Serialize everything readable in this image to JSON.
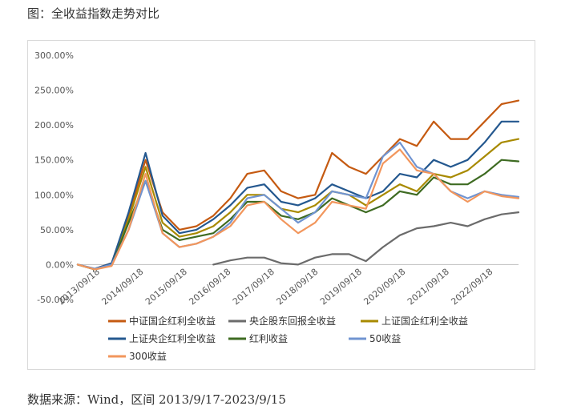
{
  "figure": {
    "title": "图：全收益指数走势对比",
    "source": "数据来源：Wind，区间 2013/9/17-2023/9/15"
  },
  "colors": {
    "中证国企红利全收益": "#c55a11",
    "央企股东回报全收益": "#6b6b6b",
    "上证国企红利全收益": "#a88a00",
    "上证央企红利全收益": "#24588f",
    "红利收益": "#3e6b22",
    "50收益": "#7094d1",
    "300收益": "#f2965c"
  },
  "chart_data": {
    "type": "line",
    "title": "",
    "xlabel": "",
    "ylabel": "",
    "ylim": [
      -0.5,
      3.0
    ],
    "y_ticks": [
      -0.5,
      0.0,
      0.5,
      1.0,
      1.5,
      2.0,
      2.5,
      3.0
    ],
    "y_tick_labels": [
      "-50.00%",
      "0.00%",
      "50.00%",
      "100.00%",
      "150.00%",
      "200.00%",
      "250.00%",
      "300.00%"
    ],
    "x_tick_labels": [
      "2013/09/18",
      "2014/09/18",
      "2015/09/18",
      "2016/09/18",
      "2017/09/18",
      "2018/09/18",
      "2019/09/18",
      "2020/09/18",
      "2021/09/18",
      "2022/09/18"
    ],
    "x": [
      "2013/09",
      "2014/03",
      "2014/09",
      "2015/03",
      "2015/06",
      "2015/09",
      "2016/01",
      "2016/03",
      "2016/09",
      "2017/03",
      "2017/09",
      "2018/01",
      "2018/06",
      "2018/10",
      "2019/01",
      "2019/04",
      "2019/09",
      "2020/03",
      "2020/09",
      "2021/02",
      "2021/09",
      "2022/01",
      "2022/05",
      "2022/10",
      "2023/01",
      "2023/05",
      "2023/09"
    ],
    "legend_position": "bottom",
    "legend": [
      "中证国企红利全收益",
      "央企股东回报全收益",
      "上证国企红利全收益",
      "上证央企红利全收益",
      "红利收益",
      "50收益",
      "300收益"
    ],
    "series": [
      {
        "name": "中证国企红利全收益",
        "values": [
          0.0,
          -0.06,
          0.02,
          0.7,
          1.5,
          0.75,
          0.5,
          0.55,
          0.7,
          0.95,
          1.3,
          1.35,
          1.05,
          0.95,
          1.0,
          1.6,
          1.4,
          1.3,
          1.55,
          1.8,
          1.7,
          2.05,
          1.8,
          1.8,
          2.05,
          2.3,
          2.35
        ]
      },
      {
        "name": "央企股东回报全收益",
        "values": [
          null,
          null,
          null,
          null,
          null,
          null,
          null,
          null,
          0.0,
          0.06,
          0.1,
          0.1,
          0.02,
          0.0,
          0.1,
          0.15,
          0.15,
          0.05,
          0.25,
          0.42,
          0.52,
          0.55,
          0.6,
          0.55,
          0.65,
          0.72,
          0.75
        ]
      },
      {
        "name": "上证国企红利全收益",
        "values": [
          0.0,
          -0.07,
          0.0,
          0.65,
          1.4,
          0.6,
          0.4,
          0.45,
          0.55,
          0.75,
          1.0,
          1.0,
          0.8,
          0.75,
          0.85,
          1.05,
          1.0,
          0.85,
          1.0,
          1.15,
          1.05,
          1.3,
          1.25,
          1.35,
          1.55,
          1.75,
          1.8
        ]
      },
      {
        "name": "上证央企红利全收益",
        "values": [
          0.0,
          -0.06,
          0.02,
          0.75,
          1.6,
          0.7,
          0.45,
          0.5,
          0.65,
          0.85,
          1.1,
          1.15,
          0.9,
          0.85,
          0.95,
          1.15,
          1.05,
          0.95,
          1.05,
          1.3,
          1.25,
          1.5,
          1.4,
          1.5,
          1.75,
          2.05,
          2.05
        ]
      },
      {
        "name": "红利收益",
        "values": [
          0.0,
          -0.07,
          -0.01,
          0.6,
          1.2,
          0.5,
          0.35,
          0.4,
          0.45,
          0.65,
          0.9,
          0.9,
          0.7,
          0.65,
          0.75,
          0.95,
          0.85,
          0.75,
          0.85,
          1.05,
          1.0,
          1.25,
          1.15,
          1.15,
          1.3,
          1.5,
          1.48
        ]
      },
      {
        "name": "50收益",
        "values": [
          0.0,
          -0.06,
          0.0,
          0.5,
          1.2,
          0.45,
          0.25,
          0.3,
          0.4,
          0.6,
          0.95,
          1.0,
          0.8,
          0.6,
          0.75,
          1.05,
          1.0,
          0.95,
          1.55,
          1.75,
          1.4,
          1.3,
          1.05,
          0.95,
          1.05,
          1.0,
          0.97
        ]
      },
      {
        "name": "300收益",
        "values": [
          0.0,
          -0.07,
          -0.02,
          0.5,
          1.3,
          0.45,
          0.25,
          0.3,
          0.4,
          0.55,
          0.85,
          0.9,
          0.65,
          0.45,
          0.6,
          0.9,
          0.85,
          0.8,
          1.45,
          1.65,
          1.35,
          1.3,
          1.05,
          0.9,
          1.05,
          0.98,
          0.95
        ]
      }
    ]
  }
}
